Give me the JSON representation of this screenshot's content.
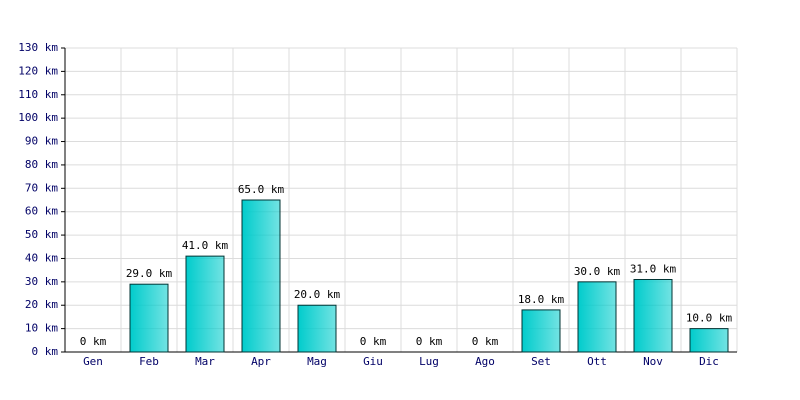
{
  "chart_data": {
    "type": "bar",
    "categories": [
      "Gen",
      "Feb",
      "Mar",
      "Apr",
      "Mag",
      "Giu",
      "Lug",
      "Ago",
      "Set",
      "Ott",
      "Nov",
      "Dic"
    ],
    "values": [
      0,
      29,
      41,
      65,
      20,
      0,
      0,
      0,
      18,
      30,
      31,
      10
    ],
    "value_labels": [
      "0 km",
      "29.0 km",
      "41.0 km",
      "65.0 km",
      "20.0 km",
      "0 km",
      "0 km",
      "0 km",
      "18.0 km",
      "30.0 km",
      "31.0 km",
      "10.0 km"
    ],
    "color": "#00cccc",
    "ylim": [
      0,
      130
    ],
    "yticks": [
      {
        "value": 0,
        "label": "0 km"
      },
      {
        "value": 10,
        "label": "10 km"
      },
      {
        "value": 20,
        "label": "20 km"
      },
      {
        "value": 30,
        "label": "30 km"
      },
      {
        "value": 40,
        "label": "40 km"
      },
      {
        "value": 50,
        "label": "50 km"
      },
      {
        "value": 60,
        "label": "60 km"
      },
      {
        "value": 70,
        "label": "70 km"
      },
      {
        "value": 80,
        "label": "80 km"
      },
      {
        "value": 90,
        "label": "90 km"
      },
      {
        "value": 100,
        "label": "100 km"
      },
      {
        "value": 110,
        "label": "110 km"
      },
      {
        "value": 120,
        "label": "120 km"
      },
      {
        "value": 130,
        "label": "130 km"
      }
    ],
    "grid": true
  }
}
